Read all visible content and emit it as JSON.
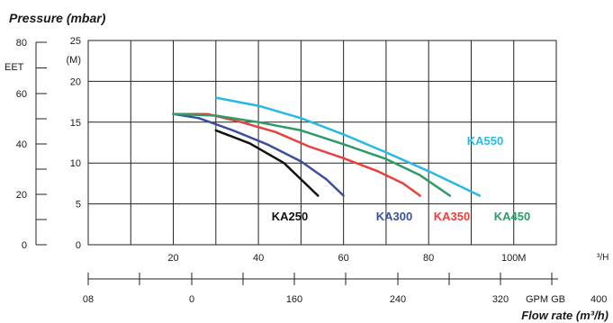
{
  "chart_data": {
    "type": "line",
    "title": "Pressure (mbar)",
    "xlabel": "Flow rate (m³/h)",
    "x_ticks": [
      "20",
      "40",
      "60",
      "80",
      "100M"
    ],
    "x_unit": "³/H",
    "xlim": [
      0,
      110
    ],
    "ylim": [
      0,
      25
    ],
    "y_unit": "(M)",
    "y_ticks": [
      "5",
      "10",
      "15",
      "20",
      "25"
    ],
    "left_axis": {
      "label": "EET",
      "ticks": [
        "0",
        "20",
        "40",
        "60",
        "80"
      ]
    },
    "bottom_axis": {
      "ticks": [
        "08",
        "0",
        "160",
        "240",
        "320"
      ],
      "unit": "GPM  GB",
      "end": "400"
    },
    "grid": true,
    "series": [
      {
        "name": "KA250",
        "color": "#111111",
        "x": [
          30,
          38,
          46,
          50,
          54
        ],
        "y": [
          14,
          12.4,
          10,
          8,
          6
        ]
      },
      {
        "name": "KA300",
        "color": "#3b4f9c",
        "x": [
          20,
          26,
          34,
          42,
          50,
          56,
          60
        ],
        "y": [
          16,
          15.5,
          14,
          12.3,
          10.2,
          8,
          6
        ]
      },
      {
        "name": "KA350",
        "color": "#e8403c",
        "x": [
          20,
          28,
          36,
          44,
          52,
          60,
          68,
          74,
          78
        ],
        "y": [
          16,
          16,
          15,
          13.8,
          12,
          10.6,
          9,
          7.5,
          6
        ]
      },
      {
        "name": "KA450",
        "color": "#2e9a68",
        "x": [
          20,
          30,
          40,
          50,
          60,
          70,
          78,
          85
        ],
        "y": [
          16,
          15.8,
          15,
          14,
          12.3,
          10.5,
          8.5,
          6
        ]
      },
      {
        "name": "KA550",
        "color": "#27b9e4",
        "x": [
          30,
          40,
          50,
          60,
          70,
          80,
          88,
          92
        ],
        "y": [
          18,
          17,
          15.5,
          13.5,
          11.3,
          9,
          7,
          6
        ]
      }
    ]
  }
}
